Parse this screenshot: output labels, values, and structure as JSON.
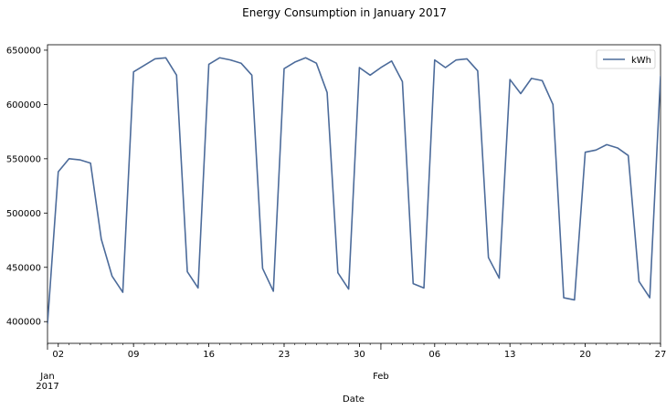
{
  "chart_data": {
    "type": "line",
    "title": "Energy Consumption in January 2017",
    "xlabel": "Date",
    "ylabel": "",
    "ylim": [
      380000,
      655000
    ],
    "xlim": [
      "2017-01-01",
      "2017-02-27"
    ],
    "grid": false,
    "legend_position": "top-right",
    "y_ticks": [
      "400000",
      "450000",
      "500000",
      "550000",
      "600000",
      "650000"
    ],
    "x_ticks": [
      {
        "date": "2017-01-02",
        "label": "02"
      },
      {
        "date": "2017-01-09",
        "label": "09"
      },
      {
        "date": "2017-01-16",
        "label": "16"
      },
      {
        "date": "2017-01-23",
        "label": "23"
      },
      {
        "date": "2017-01-30",
        "label": "30"
      },
      {
        "date": "2017-02-06",
        "label": "06"
      },
      {
        "date": "2017-02-13",
        "label": "13"
      },
      {
        "date": "2017-02-20",
        "label": "20"
      },
      {
        "date": "2017-02-27",
        "label": "27"
      }
    ],
    "x_major_labels": [
      {
        "date": "2017-01-01",
        "lines": [
          "Jan",
          "2017"
        ]
      },
      {
        "date": "2017-02-01",
        "lines": [
          "Feb"
        ]
      }
    ],
    "series": [
      {
        "name": "kWh",
        "color": "#4c6b9a",
        "x": [
          "2017-01-01",
          "2017-01-02",
          "2017-01-03",
          "2017-01-04",
          "2017-01-05",
          "2017-01-06",
          "2017-01-07",
          "2017-01-08",
          "2017-01-09",
          "2017-01-10",
          "2017-01-11",
          "2017-01-12",
          "2017-01-13",
          "2017-01-14",
          "2017-01-15",
          "2017-01-16",
          "2017-01-17",
          "2017-01-18",
          "2017-01-19",
          "2017-01-20",
          "2017-01-21",
          "2017-01-22",
          "2017-01-23",
          "2017-01-24",
          "2017-01-25",
          "2017-01-26",
          "2017-01-27",
          "2017-01-28",
          "2017-01-29",
          "2017-01-30",
          "2017-01-31",
          "2017-02-01",
          "2017-02-02",
          "2017-02-03",
          "2017-02-04",
          "2017-02-05",
          "2017-02-06",
          "2017-02-07",
          "2017-02-08",
          "2017-02-09",
          "2017-02-10",
          "2017-02-11",
          "2017-02-12",
          "2017-02-13",
          "2017-02-14",
          "2017-02-15",
          "2017-02-16",
          "2017-02-17",
          "2017-02-18",
          "2017-02-19",
          "2017-02-20",
          "2017-02-21",
          "2017-02-22",
          "2017-02-23",
          "2017-02-24",
          "2017-02-25",
          "2017-02-26",
          "2017-02-27",
          "2017-02-28"
        ],
        "values": [
          398000,
          538000,
          550000,
          549000,
          546000,
          476000,
          442000,
          427000,
          630000,
          636000,
          642000,
          643000,
          627000,
          446000,
          431000,
          637000,
          643000,
          641000,
          638000,
          627000,
          449000,
          428000,
          633000,
          639000,
          643000,
          638000,
          611000,
          445000,
          430000,
          634000,
          627000,
          634000,
          640000,
          621000,
          435000,
          431000,
          641000,
          634000,
          641000,
          642000,
          631000,
          459000,
          440000,
          623000,
          610000,
          624000,
          622000,
          600000,
          422000,
          420000,
          556000,
          558000,
          563000,
          560000,
          553000,
          437000,
          422000,
          626000,
          623000
        ]
      }
    ]
  }
}
